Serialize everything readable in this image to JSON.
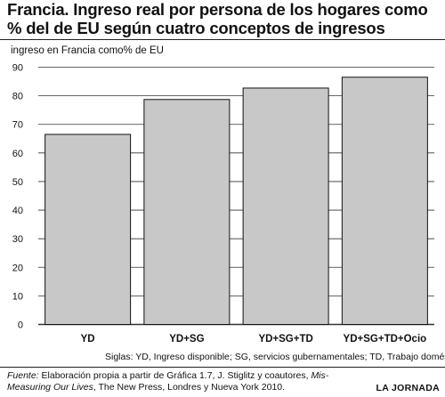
{
  "title": "Francia. Ingreso real por persona de los hogares como % del de EU según cuatro conceptos de ingresos",
  "chart_data": {
    "type": "bar",
    "ylabel": "ingreso en Francia como% de EU",
    "xlabel": "",
    "ylim": [
      0,
      90
    ],
    "yticks": [
      0,
      10,
      20,
      30,
      40,
      50,
      60,
      70,
      80,
      90
    ],
    "grid": true,
    "categories": [
      "YD",
      "YD+SG",
      "YD+SG+TD",
      "YD+SG+TD+Ocio"
    ],
    "values": [
      66.5,
      78.7,
      82.7,
      86.5
    ],
    "bar_color": "#c8c8c8",
    "gridline_color": "#333333"
  },
  "notes": {
    "siglas": "Siglas: YD, Ingreso disponible; SG, servicios gubernamentales; TD, Trabajo doméstico."
  },
  "source": {
    "label": "Fuente:",
    "text_before_italic": " Elaboración propia a partir de Gráfica 1.7, J. Stiglitz y coautores, ",
    "italic_title": "Mis-Measuring Our Lives",
    "text_after_italic": ", The New Press, Londres y Nueva York 2010."
  },
  "brand": "LA JORNADA"
}
